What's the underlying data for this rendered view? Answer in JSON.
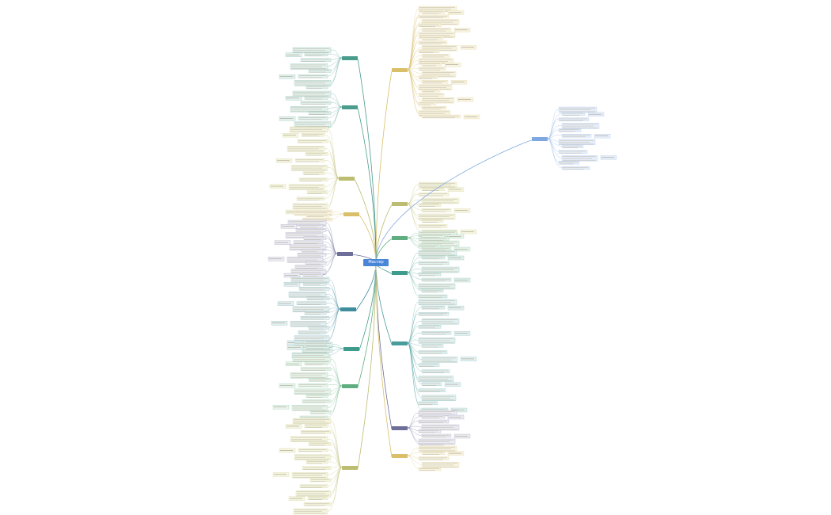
{
  "central": {
    "title": "Мастер Связи",
    "color": "#4a86d8"
  },
  "branches": [
    {
      "id": "r1",
      "color": "#d9bf6a",
      "leaf": "#f7f3e1"
    },
    {
      "id": "r2",
      "color": "#bdbd72",
      "leaf": "#f5f5e0"
    },
    {
      "id": "r3",
      "color": "#5fae7f",
      "leaf": "#e8f4ec"
    },
    {
      "id": "r4",
      "color": "#3f9c8c",
      "leaf": "#e3f1ee"
    },
    {
      "id": "r5",
      "color": "#4a9c9c",
      "leaf": "#e3f0f1"
    },
    {
      "id": "r6",
      "color": "#6d6f9a",
      "leaf": "#ececf4"
    },
    {
      "id": "r7",
      "color": "#d9bf6a",
      "leaf": "#f7f3e1"
    },
    {
      "id": "r8",
      "color": "#7fa8e0",
      "leaf": "#e6eefa"
    },
    {
      "id": "l1",
      "color": "#4a9c8c",
      "leaf": "#e3f1ee"
    },
    {
      "id": "l2",
      "color": "#4a9c8c",
      "leaf": "#e3f1ee"
    },
    {
      "id": "l3",
      "color": "#bdbd72",
      "leaf": "#f5f5e0"
    },
    {
      "id": "l4",
      "color": "#d9bf6a",
      "leaf": "#f7f3e1"
    },
    {
      "id": "l5",
      "color": "#6d6f9a",
      "leaf": "#ececf4"
    },
    {
      "id": "l6",
      "color": "#3f8c9c",
      "leaf": "#e3eff1"
    },
    {
      "id": "l7",
      "color": "#3f9c8c",
      "leaf": "#e3f1ee"
    },
    {
      "id": "l8",
      "color": "#5fae7f",
      "leaf": "#e8f4ec"
    },
    {
      "id": "l9",
      "color": "#bdbd72",
      "leaf": "#f5f5e0"
    }
  ]
}
